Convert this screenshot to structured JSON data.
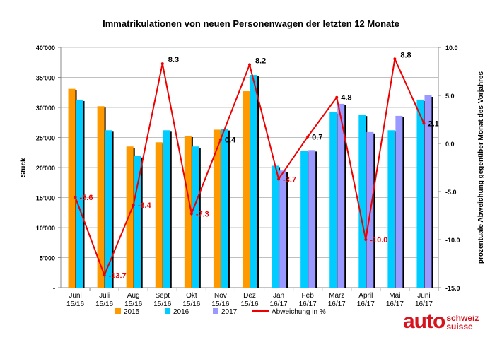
{
  "chart_data": {
    "type": "bar",
    "title": "Immatrikulationen von neuen Personenwagen der letzten 12 Monate",
    "ylabel": "Stück",
    "y2label": "prozentuale Abweichung gegenüber Monat des Vorjahres",
    "ylim": [
      0,
      40000
    ],
    "y2lim": [
      -15,
      10
    ],
    "yticks": [
      "-",
      "5'000",
      "10'000",
      "15'000",
      "20'000",
      "25'000",
      "30'000",
      "35'000",
      "40'000"
    ],
    "y2ticks": [
      "-15.0",
      "-10.0",
      "-5.0",
      "0.0",
      "5.0",
      "10.0"
    ],
    "grid": true,
    "legend_position": "bottom",
    "categories": [
      [
        "Juni",
        "15/16"
      ],
      [
        "Juli",
        "15/16"
      ],
      [
        "Aug",
        "15/16"
      ],
      [
        "Sept",
        "15/16"
      ],
      [
        "Okt",
        "15/16"
      ],
      [
        "Nov",
        "15/16"
      ],
      [
        "Dez",
        "15/16"
      ],
      [
        "Jan",
        "16/17"
      ],
      [
        "Feb",
        "16/17"
      ],
      [
        "März",
        "16/17"
      ],
      [
        "April",
        "16/17"
      ],
      [
        "Mai",
        "16/17"
      ],
      [
        "Juni",
        "16/17"
      ]
    ],
    "series": [
      {
        "name": "2015",
        "color": "#ff9900",
        "values": [
          33100,
          30200,
          23500,
          24200,
          25300,
          26300,
          32700,
          null,
          null,
          null,
          null,
          null,
          null
        ]
      },
      {
        "name": "2016",
        "color": "#00ccff",
        "values": [
          31300,
          26200,
          21900,
          26200,
          23500,
          26400,
          35400,
          20300,
          22800,
          29200,
          28800,
          26200,
          31300
        ]
      },
      {
        "name": "2017",
        "color": "#9999ff",
        "values": [
          null,
          null,
          null,
          null,
          null,
          null,
          null,
          19500,
          22900,
          30600,
          25900,
          28600,
          32000
        ]
      },
      {
        "name": "Abweichung in %",
        "type": "line",
        "axis": "right",
        "color": "#ee0000",
        "values": [
          -5.6,
          -13.7,
          -6.4,
          8.3,
          -7.3,
          0.4,
          8.2,
          -3.7,
          0.7,
          4.8,
          -10.0,
          8.8,
          2.1
        ],
        "labels": [
          "-5.6",
          "-13.7",
          "-6.4",
          "8.3",
          "-7.3",
          "0.4",
          "8.2",
          "-3.7",
          "0.7",
          "4.8",
          "-10.0",
          "8.8",
          "2.1"
        ]
      }
    ]
  },
  "logo": {
    "main": "auto",
    "line1": "schweiz",
    "line2": "suisse",
    "color": "#d7141e"
  }
}
